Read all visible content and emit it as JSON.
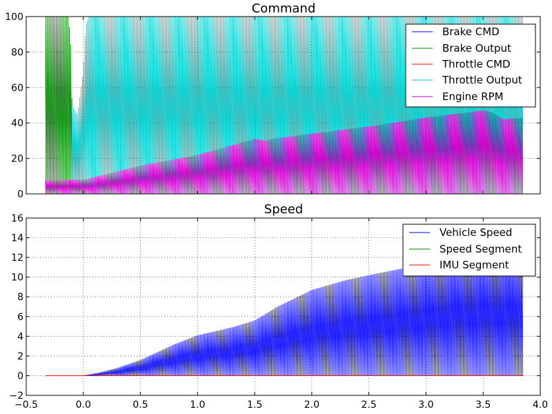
{
  "chart_data": [
    {
      "type": "line",
      "title": "Command",
      "xlim": [
        -0.5,
        4.0
      ],
      "ylim": [
        0,
        100
      ],
      "yticks": [
        0,
        20,
        40,
        60,
        80,
        100
      ],
      "xticks_visible": false,
      "grid": true,
      "legend_position": "top-right",
      "series": [
        {
          "name": "Brake CMD",
          "color": "#0000ff",
          "style": "oscillating",
          "x_range": [
            -0.33,
            3.85
          ],
          "envelope_x": [
            -0.33,
            3.85
          ],
          "envelope_y": [
            0,
            0
          ]
        },
        {
          "name": "Brake Output",
          "color": "#008000",
          "style": "oscillating",
          "x_range": [
            -0.33,
            -0.09
          ],
          "envelope_x": [
            -0.33,
            -0.22,
            -0.2,
            -0.13,
            -0.11,
            -0.09
          ],
          "envelope_y": [
            100,
            100,
            100,
            100,
            83,
            25
          ]
        },
        {
          "name": "Throttle CMD",
          "color": "#ff0000",
          "style": "oscillating",
          "x_range": [
            -0.33,
            3.85
          ],
          "envelope_x": [
            -0.33,
            3.85
          ],
          "envelope_y": [
            0,
            0
          ]
        },
        {
          "name": "Throttle Output",
          "color": "#00bfbf",
          "style": "oscillating",
          "x_range": [
            -0.1,
            3.85
          ],
          "envelope_x": [
            -0.1,
            -0.05,
            0.0,
            0.02,
            0.05,
            3.85
          ],
          "envelope_y": [
            50,
            45,
            70,
            95,
            100,
            100
          ]
        },
        {
          "name": "Engine RPM",
          "color": "#bf00bf",
          "style": "oscillating",
          "x_range": [
            -0.33,
            3.85
          ],
          "envelope_x": [
            -0.33,
            0.0,
            0.5,
            1.0,
            1.5,
            1.6,
            1.65,
            2.0,
            2.5,
            3.0,
            3.5,
            3.58,
            3.68,
            3.85
          ],
          "envelope_y": [
            8,
            8,
            16,
            22,
            31,
            30,
            31,
            34,
            38,
            43,
            47,
            46,
            42,
            43
          ]
        }
      ]
    },
    {
      "type": "line",
      "title": "Speed",
      "xlim": [
        -0.5,
        4.0
      ],
      "ylim": [
        -2,
        16
      ],
      "xticks": [
        -0.5,
        0.0,
        0.5,
        1.0,
        1.5,
        2.0,
        2.5,
        3.0,
        3.5,
        4.0
      ],
      "xtick_labels": [
        "−0.5",
        "0.0",
        "0.5",
        "1.0",
        "1.5",
        "2.0",
        "2.5",
        "3.0",
        "3.5",
        "4.0"
      ],
      "yticks": [
        -2,
        0,
        2,
        4,
        6,
        8,
        10,
        12,
        14,
        16
      ],
      "ytick_labels": [
        "−2",
        "0",
        "2",
        "4",
        "6",
        "8",
        "10",
        "12",
        "14",
        "16"
      ],
      "grid": true,
      "legend_position": "top-right",
      "series": [
        {
          "name": "Vehicle Speed",
          "color": "#0000ff",
          "style": "oscillating",
          "x_range": [
            -0.33,
            3.85
          ],
          "envelope_x": [
            -0.33,
            0.0,
            0.1,
            0.3,
            0.5,
            0.8,
            1.0,
            1.3,
            1.5,
            1.7,
            2.0,
            2.3,
            2.5,
            2.8,
            3.0,
            3.2,
            3.5,
            3.85
          ],
          "envelope_y": [
            0,
            0,
            0.2,
            0.8,
            1.6,
            3.2,
            4.1,
            4.9,
            5.6,
            7.0,
            8.7,
            9.7,
            10.2,
            10.9,
            11.5,
            12.1,
            12.5,
            12.5
          ]
        },
        {
          "name": "Speed Segment",
          "color": "#008000",
          "style": "line",
          "x_range": [
            -0.33,
            3.85
          ],
          "envelope_x": [
            -0.33,
            3.85
          ],
          "envelope_y": [
            0,
            0
          ]
        },
        {
          "name": "IMU Segment",
          "color": "#ff0000",
          "style": "line",
          "x_range": [
            -0.33,
            3.85
          ],
          "envelope_x": [
            -0.33,
            3.85
          ],
          "envelope_y": [
            0,
            0
          ]
        }
      ]
    }
  ]
}
